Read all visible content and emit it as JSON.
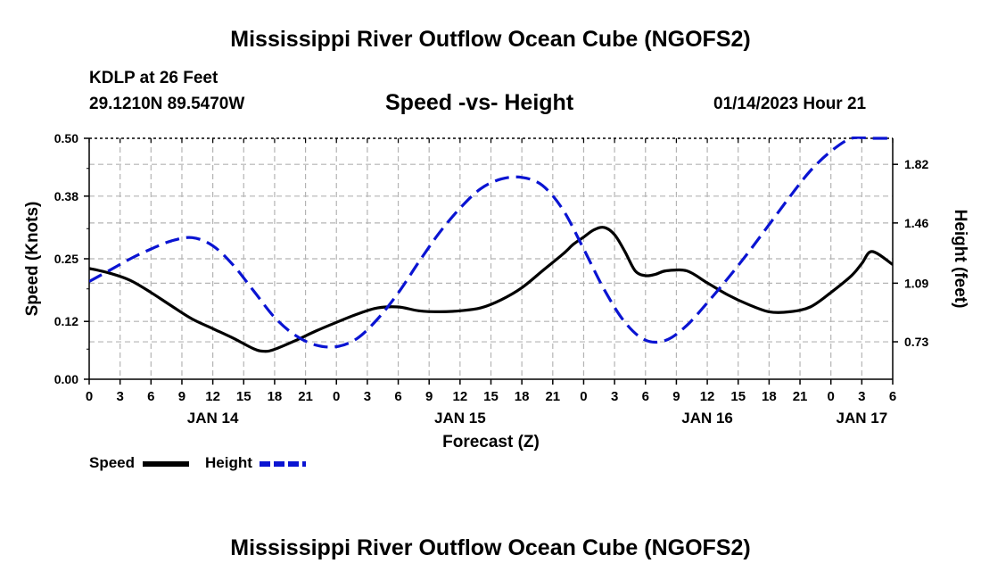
{
  "title": "Mississippi River Outflow Ocean Cube (NGOFS2)",
  "footer_title": "Mississippi River Outflow Ocean Cube (NGOFS2)",
  "station": {
    "name": "KDLP at 26 Feet",
    "coords": "29.1210N  89.5470W"
  },
  "subtitle": "Speed -vs- Height",
  "timestamp": "01/14/2023 Hour 21",
  "colors": {
    "speed": "#000000",
    "height": "#0a14d2",
    "grid": "#b4b4b4"
  },
  "chart_data": {
    "type": "line",
    "xlabel": "Forecast (Z)",
    "x_unit": "hours since 2023-01-14 00Z",
    "xlim": [
      0,
      78
    ],
    "x_tick_step": 3,
    "x_tick_labels": [
      "0",
      "3",
      "6",
      "9",
      "12",
      "15",
      "18",
      "21",
      "0",
      "3",
      "6",
      "9",
      "12",
      "15",
      "18",
      "21",
      "0",
      "3",
      "6",
      "9",
      "12",
      "15",
      "18",
      "21",
      "0",
      "3",
      "6"
    ],
    "day_labels": [
      {
        "x": 12,
        "label": "JAN 14"
      },
      {
        "x": 36,
        "label": "JAN 15"
      },
      {
        "x": 60,
        "label": "JAN 16"
      },
      {
        "x": 75,
        "label": "JAN 17"
      }
    ],
    "y_left": {
      "label": "Speed (Knots)",
      "lim": [
        0,
        0.5
      ],
      "ticks": [
        0.0,
        0.12,
        0.25,
        0.38,
        0.5
      ],
      "tick_labels": [
        "0.00",
        "0.12",
        "0.25",
        "0.38",
        "0.50"
      ]
    },
    "y_right": {
      "label": "Height (feet)",
      "lim": [
        0.5,
        1.98
      ],
      "ticks": [
        0.73,
        1.09,
        1.46,
        1.82
      ],
      "tick_labels": [
        "0.73",
        "1.09",
        "1.46",
        "1.82"
      ]
    },
    "grid": true,
    "series": [
      {
        "name": "Speed",
        "axis": "left",
        "style": "solid",
        "x": [
          0,
          2,
          4,
          6,
          8,
          10,
          12,
          14,
          16,
          17,
          18,
          20,
          22,
          24,
          26,
          28,
          30,
          32,
          34,
          36,
          38,
          40,
          42,
          44,
          46,
          47,
          48,
          49,
          50,
          51,
          52,
          53,
          54,
          55,
          56,
          58,
          60,
          62,
          64,
          66,
          68,
          70,
          72,
          74,
          75,
          76,
          78
        ],
        "y": [
          0.23,
          0.22,
          0.205,
          0.18,
          0.152,
          0.125,
          0.105,
          0.085,
          0.063,
          0.058,
          0.062,
          0.08,
          0.1,
          0.118,
          0.135,
          0.148,
          0.15,
          0.142,
          0.14,
          0.142,
          0.148,
          0.165,
          0.19,
          0.225,
          0.26,
          0.28,
          0.295,
          0.31,
          0.315,
          0.3,
          0.265,
          0.225,
          0.215,
          0.218,
          0.225,
          0.225,
          0.2,
          0.175,
          0.155,
          0.14,
          0.14,
          0.15,
          0.18,
          0.215,
          0.24,
          0.265,
          0.238
        ]
      },
      {
        "name": "Height",
        "axis": "right",
        "style": "dashed",
        "x": [
          0,
          2,
          4,
          6,
          8,
          10,
          12,
          14,
          16,
          18,
          20,
          22,
          24,
          26,
          28,
          30,
          32,
          34,
          36,
          38,
          40,
          42,
          44,
          46,
          48,
          50,
          52,
          54,
          56,
          58,
          60,
          62,
          64,
          66,
          68,
          70,
          72,
          74,
          76,
          78
        ],
        "y": [
          1.1,
          1.17,
          1.24,
          1.3,
          1.35,
          1.37,
          1.32,
          1.2,
          1.04,
          0.88,
          0.77,
          0.71,
          0.7,
          0.75,
          0.87,
          1.03,
          1.22,
          1.4,
          1.55,
          1.67,
          1.73,
          1.74,
          1.69,
          1.54,
          1.3,
          1.05,
          0.85,
          0.74,
          0.74,
          0.83,
          0.97,
          1.12,
          1.28,
          1.45,
          1.62,
          1.78,
          1.9,
          1.98,
          1.98,
          1.98
        ]
      }
    ],
    "legend": {
      "placement": "bottom-left",
      "entries": [
        "Speed",
        "Height"
      ]
    }
  }
}
